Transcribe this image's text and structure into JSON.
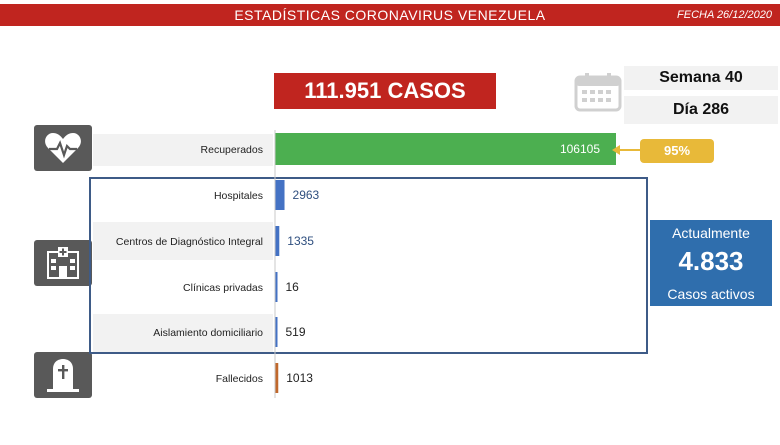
{
  "header": {
    "title": "ESTADÍSTICAS CORONAVIRUS VENEZUELA",
    "date": "FECHA 26/12/2020"
  },
  "summary": {
    "cases_label": "111.951 CASOS",
    "week_label": "Semana 40",
    "day_label": "Día 286"
  },
  "active": {
    "title": "Actualmente",
    "value": "4.833",
    "subtitle": "Casos activos"
  },
  "recovered_pct": "95%",
  "icons": [
    "calendar-icon",
    "heart-monitor-icon",
    "hospital-icon",
    "tombstone-icon"
  ],
  "colors": {
    "header": "#c0251f",
    "recovered_bar": "#4caf50",
    "active_bars": "#4472c4",
    "deaths_bar": "#c0682c",
    "active_box": "#2f6ead",
    "badge": "#e8b939"
  },
  "chart_data": {
    "type": "bar",
    "orientation": "horizontal",
    "categories": [
      "Recuperados",
      "Hospitales",
      "Centros de Diagnóstico Integral",
      "Clínicas privadas",
      "Aislamiento domiciliario",
      "Fallecidos"
    ],
    "values": [
      106105,
      2963,
      1335,
      16,
      519,
      1013
    ],
    "value_labels": [
      "106105",
      "2963",
      "1335",
      "16",
      "519",
      "1013"
    ],
    "title": "",
    "xlabel": "",
    "ylabel": "",
    "grid": false
  }
}
